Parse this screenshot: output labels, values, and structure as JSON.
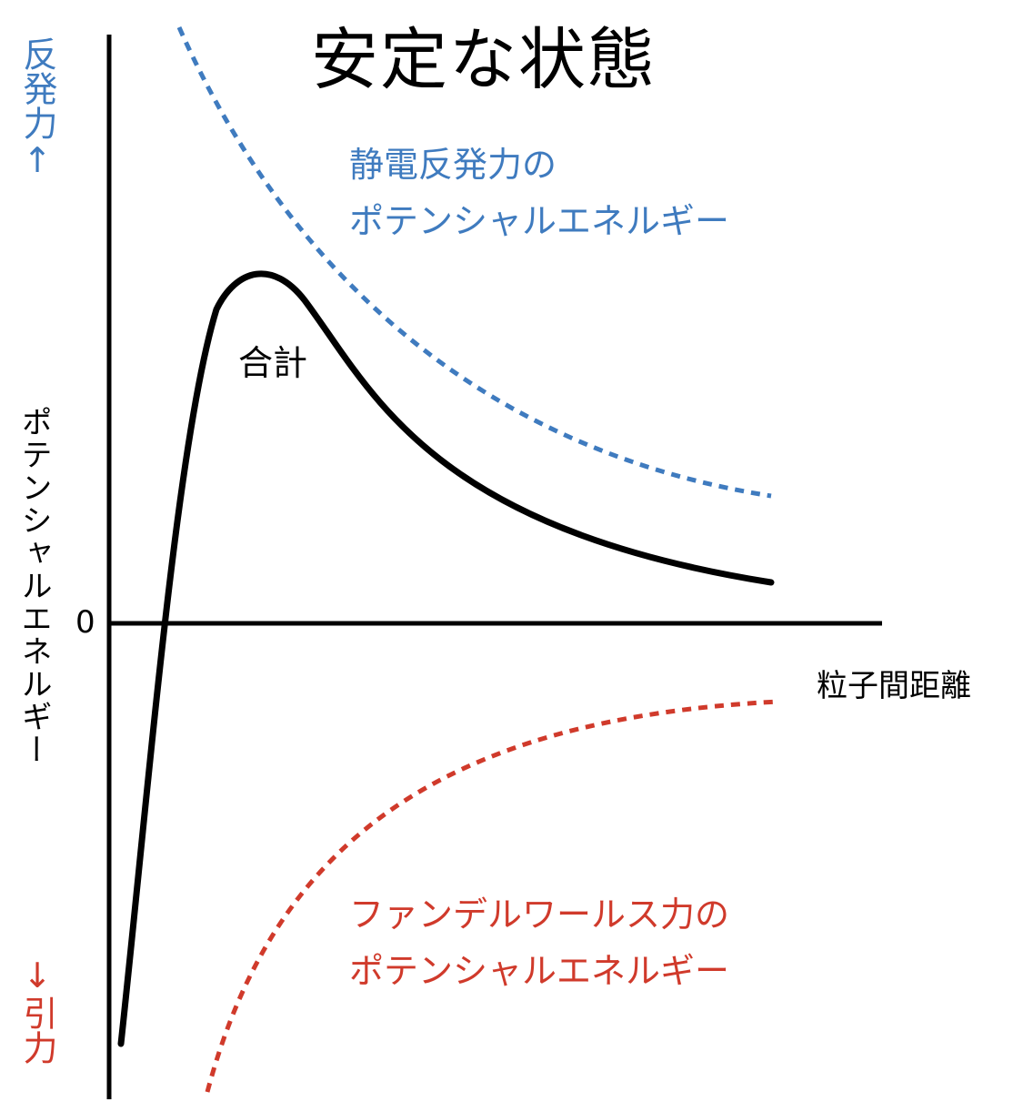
{
  "title": "安定な状態",
  "axis": {
    "y_label": "ポテンシャルエネルギー",
    "x_label": "粒子間距離",
    "zero_label": "0",
    "repulsion_label": "反発力↑",
    "attraction_label": "↓引力"
  },
  "curves": {
    "total": {
      "label": "合計",
      "color": "#000000",
      "style": "solid"
    },
    "electrostatic_repulsion": {
      "label_line1": "静電反発力の",
      "label_line2": "ポテンシャルエネルギー",
      "color": "#3f7bbf",
      "style": "dotted"
    },
    "van_der_waals": {
      "label_line1": "ファンデルワールス力の",
      "label_line2": "ポテンシャルエネルギー",
      "color": "#d03a2b",
      "style": "dotted"
    }
  }
}
